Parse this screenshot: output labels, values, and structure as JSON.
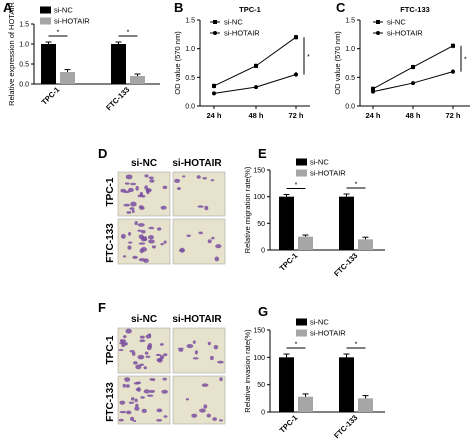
{
  "colors": {
    "si_nc": "#000000",
    "si_hotair": "#a6a6a6",
    "stain": "#7a4fa0",
    "field": "#e6e2cc"
  },
  "panels": {
    "A": "A",
    "B": "B",
    "C": "C",
    "D": "D",
    "E": "E",
    "F": "F",
    "G": "G"
  },
  "images": {
    "col_labels": [
      "si-NC",
      "si-HOTAIR"
    ],
    "row_labels": [
      "TPC-1",
      "FTC-133"
    ]
  },
  "chart_data": [
    {
      "id": "A",
      "type": "bar",
      "categories": [
        "TPC-1",
        "FTC-133"
      ],
      "series": [
        {
          "name": "si-NC",
          "values": [
            1.0,
            1.0
          ],
          "errors": [
            0.05,
            0.05
          ]
        },
        {
          "name": "si-HOTAIR",
          "values": [
            0.3,
            0.2
          ],
          "errors": [
            0.06,
            0.05
          ]
        }
      ],
      "ylabel": "Relative expression of HOTAIR",
      "ylim": [
        0,
        1.5
      ],
      "yticks": [
        "0.0",
        "0.5",
        "1.0",
        "1.5"
      ],
      "annotations": [
        "*",
        "*"
      ],
      "legend": "top-left"
    },
    {
      "id": "B",
      "type": "line",
      "title": "TPC-1",
      "x": [
        "24 h",
        "48 h",
        "72 h"
      ],
      "series": [
        {
          "name": "si-NC",
          "values": [
            0.35,
            0.7,
            1.2
          ],
          "errors": [
            0.04,
            0.04,
            0.04
          ]
        },
        {
          "name": "si-HOTAIR",
          "values": [
            0.22,
            0.33,
            0.55
          ],
          "errors": [
            0.03,
            0.03,
            0.04
          ]
        }
      ],
      "ylabel": "OD value (570 nm)",
      "ylim": [
        0.0,
        1.5
      ],
      "yticks": [
        "0.0",
        "0.5",
        "1.0",
        "1.5"
      ],
      "annotations": [
        "*"
      ],
      "legend": "top-left"
    },
    {
      "id": "C",
      "type": "line",
      "title": "FTC-133",
      "x": [
        "24 h",
        "48 h",
        "72 h"
      ],
      "series": [
        {
          "name": "si-NC",
          "values": [
            0.3,
            0.68,
            1.05
          ],
          "errors": [
            0.04,
            0.04,
            0.04
          ]
        },
        {
          "name": "si-HOTAIR",
          "values": [
            0.25,
            0.4,
            0.6
          ],
          "errors": [
            0.03,
            0.03,
            0.04
          ]
        }
      ],
      "ylabel": "OD value (570 nm)",
      "ylim": [
        0.0,
        1.5
      ],
      "yticks": [
        "0.0",
        "0.5",
        "1.0",
        "1.5"
      ],
      "annotations": [
        "*"
      ],
      "legend": "top-left"
    },
    {
      "id": "E",
      "type": "bar",
      "categories": [
        "TPC-1",
        "FTC-133"
      ],
      "series": [
        {
          "name": "si-NC",
          "values": [
            100,
            100
          ],
          "errors": [
            4,
            5
          ]
        },
        {
          "name": "si-HOTAIR",
          "values": [
            25,
            20
          ],
          "errors": [
            3,
            4
          ]
        }
      ],
      "ylabel": "Relative migration rate(%)",
      "ylim": [
        0,
        150
      ],
      "yticks": [
        "0",
        "50",
        "100",
        "150"
      ],
      "annotations": [
        "*",
        "*"
      ],
      "legend": "top-left"
    },
    {
      "id": "G",
      "type": "bar",
      "categories": [
        "TPC-1",
        "FTC-133"
      ],
      "series": [
        {
          "name": "si-NC",
          "values": [
            100,
            100
          ],
          "errors": [
            6,
            6
          ]
        },
        {
          "name": "si-HOTAIR",
          "values": [
            28,
            25
          ],
          "errors": [
            5,
            5
          ]
        }
      ],
      "ylabel": "Relative invasion rate(%)",
      "ylim": [
        0,
        150
      ],
      "yticks": [
        "0",
        "50",
        "100",
        "150"
      ],
      "annotations": [
        "*",
        "*"
      ],
      "legend": "top-left"
    }
  ]
}
